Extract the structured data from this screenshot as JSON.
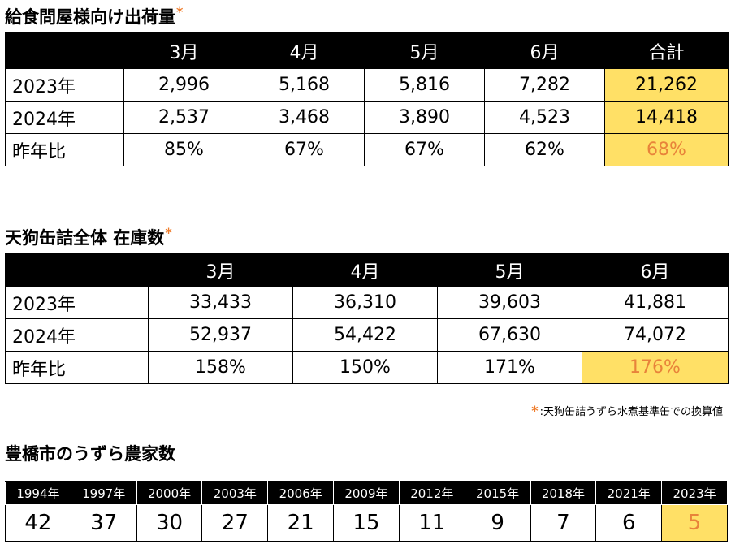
{
  "section1": {
    "title": "給食問屋様向け出荷量",
    "asterisk": "*",
    "columns": [
      "3月",
      "4月",
      "5月",
      "6月",
      "合計"
    ],
    "rows": [
      {
        "label": "2023年",
        "values": [
          "2,996",
          "5,168",
          "5,816",
          "7,282",
          "21,262"
        ]
      },
      {
        "label": "2024年",
        "values": [
          "2,537",
          "3,468",
          "3,890",
          "4,523",
          "14,418"
        ]
      },
      {
        "label": "昨年比",
        "values": [
          "85%",
          "67%",
          "67%",
          "62%",
          "68%"
        ]
      }
    ]
  },
  "section2": {
    "title": "天狗缶詰全体 在庫数",
    "asterisk": "*",
    "columns": [
      "3月",
      "4月",
      "5月",
      "6月"
    ],
    "rows": [
      {
        "label": "2023年",
        "values": [
          "33,433",
          "36,310",
          "39,603",
          "41,881"
        ]
      },
      {
        "label": "2024年",
        "values": [
          "52,937",
          "54,422",
          "67,630",
          "74,072"
        ]
      },
      {
        "label": "昨年比",
        "values": [
          "158%",
          "150%",
          "171%",
          "176%"
        ]
      }
    ]
  },
  "note": {
    "asterisk": "*",
    "text": ":天狗缶詰うずら水煮基準缶での換算値"
  },
  "section3": {
    "title": "豊橋市のうずら農家数",
    "years": [
      "1994年",
      "1997年",
      "2000年",
      "2003年",
      "2006年",
      "2009年",
      "2012年",
      "2015年",
      "2018年",
      "2021年",
      "2023年"
    ],
    "values": [
      "42",
      "37",
      "30",
      "27",
      "21",
      "15",
      "11",
      "9",
      "7",
      "6",
      "5"
    ]
  },
  "colors": {
    "highlight": "#ffe066",
    "accent_orange": "#e8833a",
    "header_bg": "#000000"
  }
}
